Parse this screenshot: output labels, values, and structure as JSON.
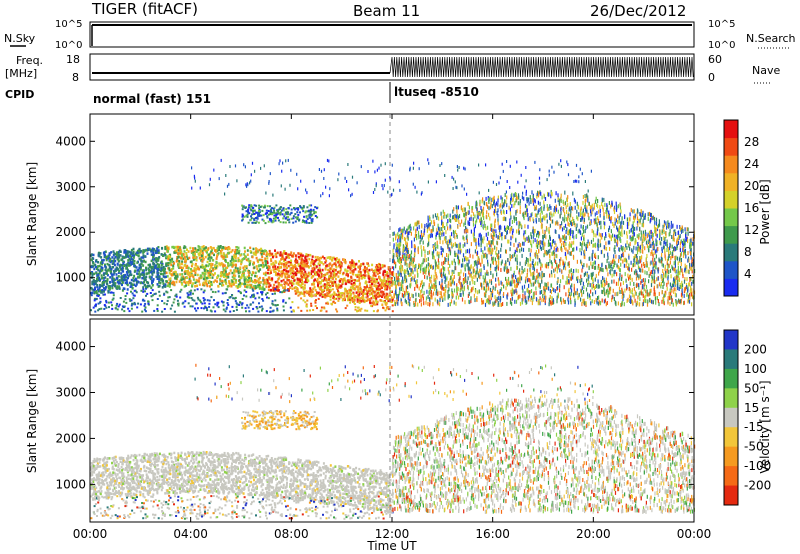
{
  "header": {
    "title": "TIGER (fitACF)",
    "beam": "Beam 11",
    "date": "26/Dec/2012"
  },
  "nsky": {
    "label": "N.Sky",
    "right_label": "N.Search",
    "ticks_left": [
      "10^5",
      "10^0"
    ],
    "ticks_right": [
      "10^5",
      "10^0"
    ]
  },
  "freq": {
    "label_line1": "Freq.",
    "label_line2": "[MHz]",
    "ticks_left": [
      "18",
      "8"
    ],
    "ticks_right": [
      "60",
      "0"
    ],
    "right_label": "Nave"
  },
  "cpid": {
    "label": "CPID",
    "segments": [
      {
        "start_hour": 0,
        "label": "normal (fast) 151"
      },
      {
        "start_hour": 12,
        "label": "ltuseq -8510"
      }
    ]
  },
  "chart_data": [
    {
      "type": "heatmap",
      "name": "power-panel",
      "ylabel": "Slant Range [km]",
      "yticks": [
        "1000",
        "2000",
        "3000",
        "4000"
      ],
      "ylim": [
        180,
        4600
      ],
      "colorbar": {
        "label": "Power [dB]",
        "ticks": [
          "4",
          "8",
          "12",
          "16",
          "20",
          "24",
          "28"
        ],
        "range": [
          0,
          32
        ],
        "colors": [
          "#1a2cf0",
          "#1f55c8",
          "#2a7a7a",
          "#3f9a4c",
          "#74c84a",
          "#d4d12a",
          "#f0b226",
          "#f58a1e",
          "#f04a14",
          "#e51010"
        ]
      }
    },
    {
      "type": "heatmap",
      "name": "velocity-panel",
      "ylabel": "Slant Range [km]",
      "yticks": [
        "1000",
        "2000",
        "3000",
        "4000"
      ],
      "ylim": [
        180,
        4600
      ],
      "colorbar": {
        "label": "Velocity [m s⁻¹]",
        "ticks": [
          "200",
          "100",
          "50",
          "15",
          "-15",
          "-50",
          "-100",
          "-200"
        ],
        "colors": [
          "#2236c8",
          "#2a7a7a",
          "#3fa64a",
          "#8fd24a",
          "#c8c8c0",
          "#f2c63a",
          "#f59a20",
          "#f56a16",
          "#e52a10"
        ]
      }
    }
  ],
  "xaxis": {
    "label": "Time UT",
    "ticks": [
      "00:00",
      "04:00",
      "08:00",
      "12:00",
      "16:00",
      "20:00",
      "00:00"
    ]
  }
}
